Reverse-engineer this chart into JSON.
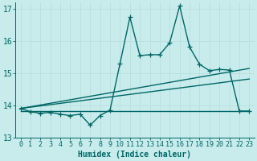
{
  "xlabel": "Humidex (Indice chaleur)",
  "bg_color": "#c8ecec",
  "grid_color": "#b8dede",
  "line_color": "#006666",
  "xlim": [
    -0.5,
    23.5
  ],
  "ylim": [
    13.0,
    17.2
  ],
  "yticks": [
    13,
    14,
    15,
    16,
    17
  ],
  "xticks": [
    0,
    1,
    2,
    3,
    4,
    5,
    6,
    7,
    8,
    9,
    10,
    11,
    12,
    13,
    14,
    15,
    16,
    17,
    18,
    19,
    20,
    21,
    22,
    23
  ],
  "series": {
    "line1": {
      "x": [
        0,
        1,
        2,
        3,
        4,
        5,
        6,
        7,
        8,
        9,
        10,
        11,
        12,
        13,
        14,
        15,
        16,
        17,
        18,
        19,
        20,
        21,
        22,
        23
      ],
      "y": [
        13.9,
        13.8,
        13.75,
        13.78,
        13.72,
        13.68,
        13.72,
        13.38,
        13.68,
        13.85,
        15.3,
        16.75,
        15.55,
        15.58,
        15.58,
        15.95,
        17.1,
        15.82,
        15.28,
        15.08,
        15.12,
        15.1,
        13.82,
        13.82
      ]
    },
    "line_fan1": {
      "x": [
        0,
        23
      ],
      "y": [
        13.9,
        15.15
      ]
    },
    "line_fan2": {
      "x": [
        0,
        23
      ],
      "y": [
        13.9,
        14.82
      ]
    },
    "line_fan3": {
      "x": [
        0,
        23
      ],
      "y": [
        13.82,
        13.82
      ]
    }
  },
  "xlabel_fontsize": 7,
  "tick_fontsize": 6.5,
  "lw": 1.0
}
